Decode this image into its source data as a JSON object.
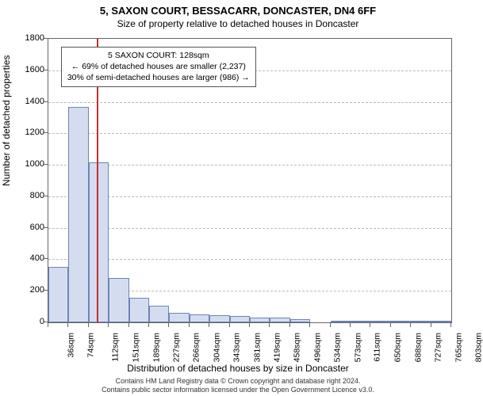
{
  "title": "5, SAXON COURT, BESSACARR, DONCASTER, DN4 6FF",
  "subtitle": "Size of property relative to detached houses in Doncaster",
  "ylabel": "Number of detached properties",
  "xlabel": "Distribution of detached houses by size in Doncaster",
  "footer_line1": "Contains HM Land Registry data © Crown copyright and database right 2024.",
  "footer_line2": "Contains public sector information licensed under the Open Government Licence v3.0.",
  "annotation": {
    "line1": "5 SAXON COURT: 128sqm",
    "line2": "← 69% of detached houses are smaller (2,237)",
    "line3": "30% of semi-detached houses are larger (986) →"
  },
  "chart": {
    "type": "bar",
    "ylim": [
      0,
      1800
    ],
    "ytick_step": 200,
    "bar_color": "#d4ddf0",
    "bar_border_color": "#6b84b8",
    "grid_color": "#bbbbbb",
    "marker_color": "#c03030",
    "marker_value": 128,
    "x_min": 36,
    "x_bin_width": 38.4,
    "categories": [
      "36sqm",
      "74sqm",
      "112sqm",
      "151sqm",
      "189sqm",
      "227sqm",
      "266sqm",
      "304sqm",
      "343sqm",
      "381sqm",
      "419sqm",
      "458sqm",
      "496sqm",
      "534sqm",
      "573sqm",
      "611sqm",
      "650sqm",
      "688sqm",
      "727sqm",
      "765sqm",
      "803sqm"
    ],
    "values": [
      350,
      1370,
      1015,
      280,
      155,
      105,
      60,
      50,
      45,
      40,
      30,
      28,
      22,
      0,
      8,
      6,
      5,
      4,
      3,
      2
    ]
  }
}
